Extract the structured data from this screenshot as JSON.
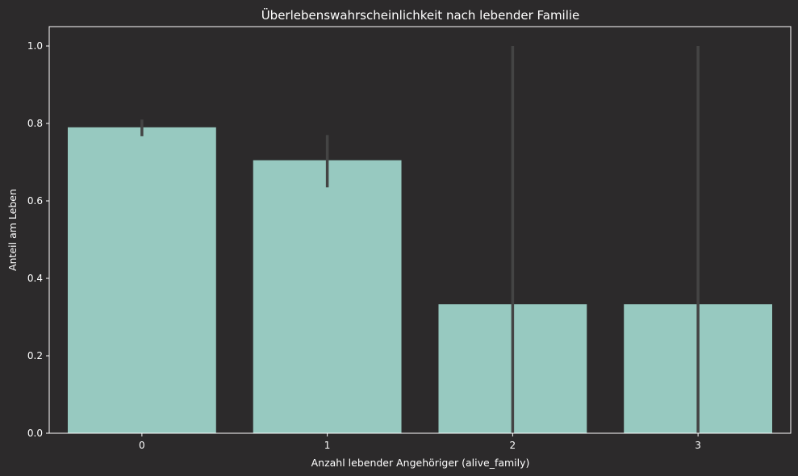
{
  "chart_data": {
    "type": "bar",
    "title": "Überlebenswahrscheinlichkeit nach lebender Familie",
    "xlabel": "Anzahl lebender Angehöriger (alive_family)",
    "ylabel": "Anteil am Leben",
    "categories": [
      "0",
      "1",
      "2",
      "3"
    ],
    "values": [
      0.79,
      0.705,
      0.333,
      0.333
    ],
    "error_bars": [
      {
        "low": 0.767,
        "high": 0.81
      },
      {
        "low": 0.635,
        "high": 0.77
      },
      {
        "low": 0.0,
        "high": 1.0
      },
      {
        "low": 0.0,
        "high": 1.0
      }
    ],
    "ylim": [
      0,
      1.05
    ],
    "yticks": [
      "0.0",
      "0.2",
      "0.4",
      "0.6",
      "0.8",
      "1.0"
    ],
    "ytick_values": [
      0,
      0.2,
      0.4,
      0.6,
      0.8,
      1.0
    ],
    "grid": false,
    "colors": {
      "background": "#2c2a2b",
      "bar": "#97c9c0",
      "error_bar": "#444444",
      "axis": "#ffffff",
      "text": "#ffffff"
    }
  }
}
